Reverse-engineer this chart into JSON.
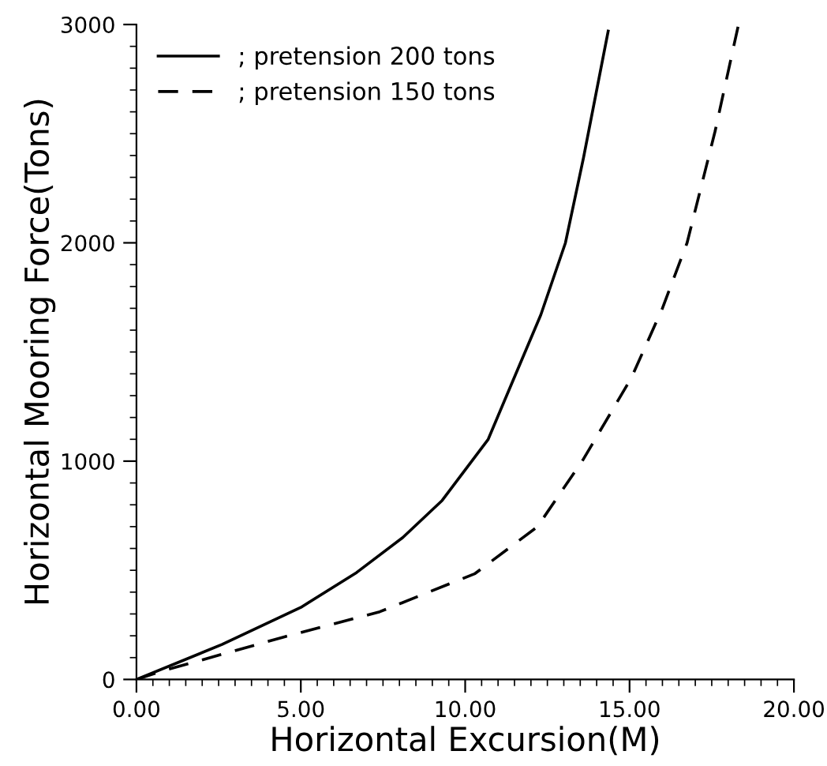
{
  "chart_data": {
    "type": "line",
    "xlabel": "Horizontal Excursion(M)",
    "ylabel": "Horizontal Mooring Force(Tons)",
    "xlim": [
      0,
      20
    ],
    "ylim": [
      0,
      3000
    ],
    "xticks": [
      {
        "value": 0,
        "label": "0.00"
      },
      {
        "value": 5,
        "label": "5.00"
      },
      {
        "value": 10,
        "label": "10.00"
      },
      {
        "value": 15,
        "label": "15.00"
      },
      {
        "value": 20,
        "label": "20.00"
      }
    ],
    "yticks": [
      0,
      1000,
      2000,
      3000
    ],
    "legend": "top left",
    "grid": false,
    "series": [
      {
        "name": "; pretension 200 tons",
        "color": "#000000",
        "line_style": "solid",
        "x": [
          0,
          2.6,
          5.0,
          6.7,
          8.1,
          9.3,
          10.7,
          11.4,
          12.3,
          13.05,
          13.6,
          14.35
        ],
        "values": [
          0,
          160,
          330,
          490,
          650,
          820,
          1100,
          1350,
          1670,
          2000,
          2390,
          2970
        ]
      },
      {
        "name": "; pretension 150 tons",
        "color": "#000000",
        "line_style": "dashed",
        "x": [
          0,
          0.7,
          4.5,
          7.4,
          10.3,
          12.2,
          13.6,
          15.05,
          16.0,
          16.75,
          17.6,
          18.3
        ],
        "values": [
          0,
          35,
          195,
          310,
          485,
          700,
          1010,
          1380,
          1700,
          2000,
          2510,
          2990
        ]
      }
    ]
  }
}
